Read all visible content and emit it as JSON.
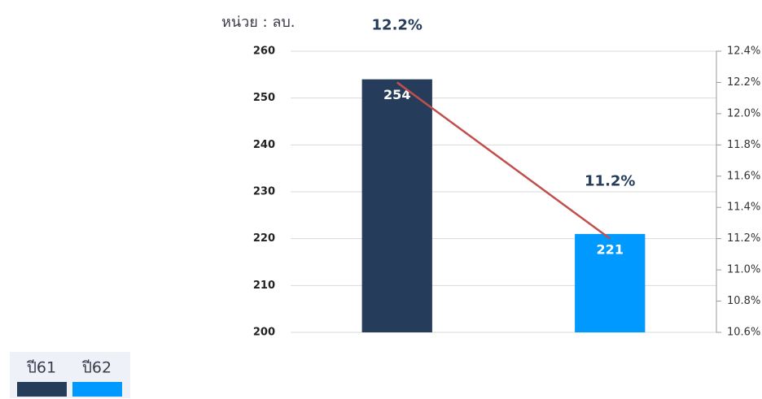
{
  "chart_data": {
    "type": "bar",
    "unit_label": "หน่วย : ลบ.",
    "categories": [
      "ปี61",
      "ปี62"
    ],
    "series": [
      {
        "type": "bar",
        "values": [
          254,
          221
        ],
        "colors": [
          "#253d5b",
          "#0099ff"
        ]
      },
      {
        "type": "line",
        "axis": "y2",
        "values": [
          12.2,
          11.2
        ],
        "value_labels": [
          "12.2%",
          "11.2%"
        ],
        "color": "#c0504d"
      }
    ],
    "ylim": [
      200,
      260
    ],
    "yticks": [
      200,
      210,
      220,
      230,
      240,
      250,
      260
    ],
    "y2lim": [
      10.6,
      12.4
    ],
    "y2ticks": [
      {
        "value": 10.6,
        "label": "10.6%"
      },
      {
        "value": 10.8,
        "label": "10.8%"
      },
      {
        "value": 11.0,
        "label": "11.0%"
      },
      {
        "value": 11.2,
        "label": "11.2%"
      },
      {
        "value": 11.4,
        "label": "11.4%"
      },
      {
        "value": 11.6,
        "label": "11.6%"
      },
      {
        "value": 11.8,
        "label": "11.8%"
      },
      {
        "value": 12.0,
        "label": "12.0%"
      },
      {
        "value": 12.2,
        "label": "12.2%"
      },
      {
        "value": 12.4,
        "label": "12.4%"
      }
    ],
    "grid": true,
    "legend": "bottom-left"
  }
}
